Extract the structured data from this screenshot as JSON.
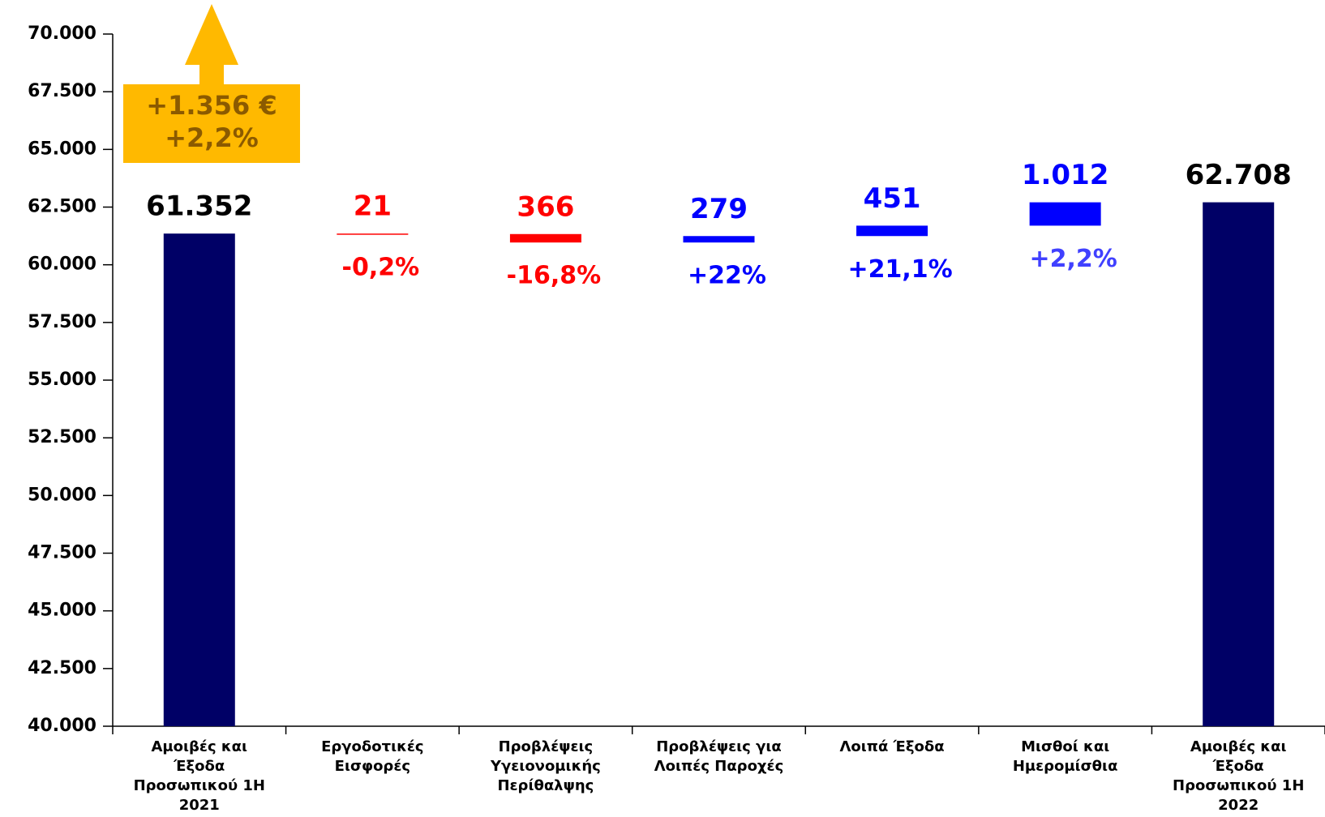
{
  "chart_data": {
    "type": "waterfall",
    "categories": [
      "Αμοιβές και Έξοδα Προσωπικού 1Η 2021",
      "Εργοδοτικές Εισφορές",
      "Προβλέψεις Υγειονομικής Περίθαλψης",
      "Προβλέψεις για Λοιπές Παροχές",
      "Λοιπά Έξοδα",
      "Μισθοί και Ημερομίσθια",
      "Αμοιβές και Έξοδα Προσωπικού 1Η 2022"
    ],
    "measures": [
      "absolute",
      "relative",
      "relative",
      "relative",
      "relative",
      "relative",
      "total"
    ],
    "values": [
      61352,
      -21,
      -366,
      279,
      451,
      1012,
      62708
    ],
    "value_labels": [
      "61.352",
      "21",
      "366",
      "279",
      "451",
      "1.012",
      "62.708"
    ],
    "percent_labels": [
      null,
      "-0,2%",
      "-16,8%",
      "+22%",
      "+21,1%",
      "+2,2%",
      null
    ],
    "colors": [
      "#000066",
      "#ff0000",
      "#ff0000",
      "#0000ff",
      "#0000ff",
      "#0000ff",
      "#000066"
    ],
    "label_colors": [
      "#000000",
      "#ff0000",
      "#ff0000",
      "#0000ff",
      "#0000ff",
      "#0000ff",
      "#000000"
    ],
    "percent_colors": [
      null,
      "#ff0000",
      "#ff0000",
      "#0000ff",
      "#0000ff",
      "#4040ff",
      null
    ],
    "annotation": [
      "+1.356 €",
      "+2,2%"
    ],
    "ylim": [
      40000,
      70000
    ],
    "yticks": [
      {
        "value": 40000,
        "label": "40.000"
      },
      {
        "value": 42500,
        "label": "42.500"
      },
      {
        "value": 45000,
        "label": "45.000"
      },
      {
        "value": 47500,
        "label": "47.500"
      },
      {
        "value": 50000,
        "label": "50.000"
      },
      {
        "value": 52500,
        "label": "52.500"
      },
      {
        "value": 55000,
        "label": "55.000"
      },
      {
        "value": 57500,
        "label": "57.500"
      },
      {
        "value": 60000,
        "label": "60.000"
      },
      {
        "value": 62500,
        "label": "62.500"
      },
      {
        "value": 65000,
        "label": "65.000"
      },
      {
        "value": 67500,
        "label": "67.500"
      },
      {
        "value": 70000,
        "label": "70.000"
      }
    ],
    "grid": false
  }
}
